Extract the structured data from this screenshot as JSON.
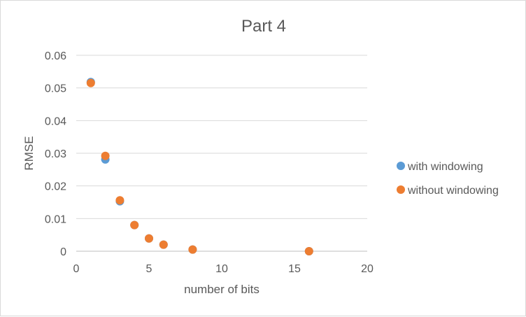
{
  "chart_data": {
    "type": "scatter",
    "title": "Part 4",
    "xlabel": "number of bits",
    "ylabel": "RMSE",
    "xlim": [
      0,
      20
    ],
    "ylim": [
      0,
      0.06
    ],
    "xticks": [
      0,
      5,
      10,
      15,
      20
    ],
    "yticks": [
      0,
      0.01,
      0.02,
      0.03,
      0.04,
      0.05,
      0.06
    ],
    "ytick_labels": [
      "0",
      "0.01",
      "0.02",
      "0.03",
      "0.04",
      "0.05",
      "0.06"
    ],
    "xtick_labels": [
      "0",
      "5",
      "10",
      "15",
      "20"
    ],
    "grid": "horizontal",
    "legend": "right",
    "series": [
      {
        "name": "with windowing",
        "color": "#5b9bd5",
        "points": [
          [
            1,
            0.0518
          ],
          [
            2,
            0.0281
          ],
          [
            3,
            0.0153
          ],
          [
            4,
            0.008
          ],
          [
            5,
            0.0039
          ],
          [
            6,
            0.002
          ],
          [
            8,
            0.0005
          ],
          [
            16,
            0.0
          ]
        ]
      },
      {
        "name": "without windowing",
        "color": "#ed7d31",
        "points": [
          [
            1,
            0.0515
          ],
          [
            2,
            0.0292
          ],
          [
            3,
            0.0156
          ],
          [
            4,
            0.008
          ],
          [
            5,
            0.0039
          ],
          [
            6,
            0.002
          ],
          [
            8,
            0.0005
          ],
          [
            16,
            0.0
          ]
        ]
      }
    ]
  }
}
